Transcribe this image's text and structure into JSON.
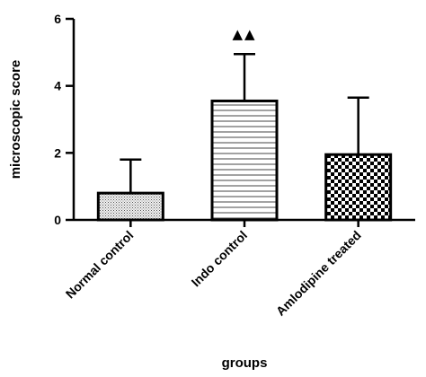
{
  "chart_data": {
    "type": "bar",
    "title": "",
    "xlabel": "groups",
    "ylabel": "microscopic score",
    "categories": [
      "Normal control",
      "Indo control",
      "Amlodipine treated"
    ],
    "values": [
      0.8,
      3.55,
      1.95
    ],
    "errors": [
      1.0,
      1.4,
      1.7
    ],
    "ylim": [
      0,
      6
    ],
    "yticks": [
      "0",
      "2",
      "4",
      "6"
    ],
    "patterns": [
      "fine-dots",
      "horizontal-lines",
      "checkerboard"
    ],
    "annotations": [
      {
        "category": "Indo control",
        "text": "▲▲"
      }
    ],
    "grid": false,
    "legend": "none"
  }
}
